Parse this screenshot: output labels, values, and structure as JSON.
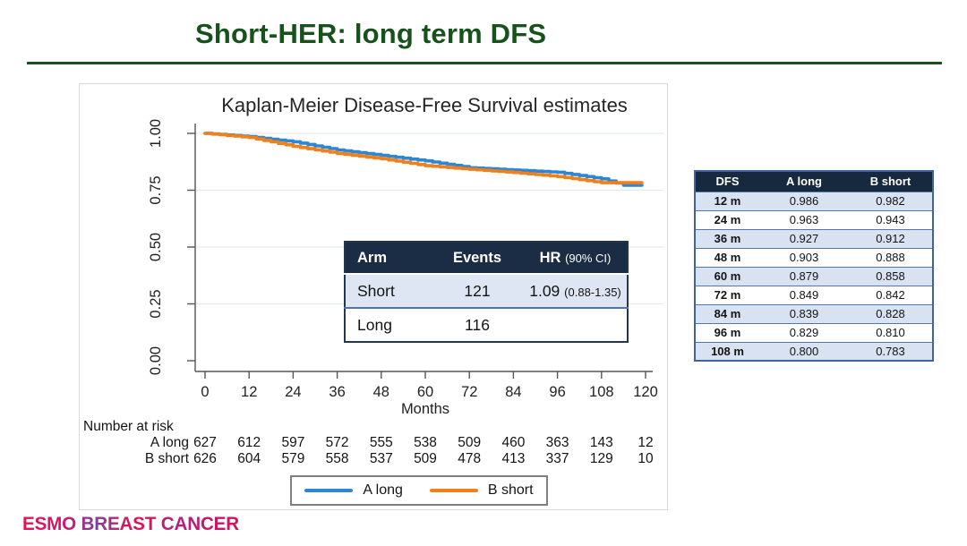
{
  "slide": {
    "title": "Short-HER: long term DFS"
  },
  "figure": {
    "title": "Kaplan-Meier Disease-Free Survival estimates"
  },
  "axes": {
    "x_label": "Months",
    "x_ticks": [
      "0",
      "12",
      "24",
      "36",
      "48",
      "60",
      "72",
      "84",
      "96",
      "108",
      "120"
    ],
    "y_ticks": [
      "1.00",
      "0.75",
      "0.50",
      "0.25",
      "0.00"
    ]
  },
  "inset_table": {
    "headers": {
      "arm": "Arm",
      "events": "Events",
      "hr": "HR",
      "hr_ci": "(90% CI)"
    },
    "rows": [
      {
        "arm": "Short",
        "events": "121",
        "hr": "1.09",
        "hr_ci": "(0.88-1.35)"
      },
      {
        "arm": "Long",
        "events": "116",
        "hr": "",
        "hr_ci": ""
      }
    ]
  },
  "risk": {
    "title": "Number at risk",
    "rows": [
      {
        "label": "A long",
        "values": [
          "627",
          "612",
          "597",
          "572",
          "555",
          "538",
          "509",
          "460",
          "363",
          "143",
          "12"
        ]
      },
      {
        "label": "B short",
        "values": [
          "626",
          "604",
          "579",
          "558",
          "537",
          "509",
          "478",
          "413",
          "337",
          "129",
          "10"
        ]
      }
    ]
  },
  "legend": {
    "items": [
      {
        "label": "A long",
        "color": "#2e86d4"
      },
      {
        "label": "B short",
        "color": "#f08019"
      }
    ]
  },
  "side_table": {
    "headers": [
      "DFS",
      "A long",
      "B short"
    ],
    "rows": [
      [
        "12 m",
        "0.986",
        "0.982"
      ],
      [
        "24 m",
        "0.963",
        "0.943"
      ],
      [
        "36 m",
        "0.927",
        "0.912"
      ],
      [
        "48 m",
        "0.903",
        "0.888"
      ],
      [
        "60 m",
        "0.879",
        "0.858"
      ],
      [
        "72 m",
        "0.849",
        "0.842"
      ],
      [
        "84 m",
        "0.839",
        "0.828"
      ],
      [
        "96 m",
        "0.829",
        "0.810"
      ],
      [
        "108 m",
        "0.800",
        "0.783"
      ]
    ]
  },
  "footer": {
    "logo": "ESMO BREAST CANCER"
  },
  "colors": {
    "title_green": "#17521d",
    "curve_a_long": "#2e86d4",
    "curve_b_short": "#f08019",
    "table_header_navy": "#1b2d44",
    "table_row_light": "#dde6f2",
    "gridline": "#e3e9ef",
    "axis": "#555555",
    "logo_magenta": "#d3145f"
  },
  "chart_data": {
    "type": "line",
    "step": true,
    "title": "Kaplan-Meier Disease-Free Survival estimates",
    "xlabel": "Months",
    "xlim": [
      0,
      120
    ],
    "ylim": [
      0.0,
      1.0
    ],
    "x_ticks": [
      0,
      12,
      24,
      36,
      48,
      60,
      72,
      84,
      96,
      108,
      120
    ],
    "y_ticks": [
      1.0,
      0.75,
      0.5,
      0.25,
      0.0
    ],
    "grid": true,
    "legend_position": "bottom",
    "series": [
      {
        "name": "A long",
        "color": "#2e86d4",
        "x": [
          0,
          12,
          24,
          36,
          48,
          60,
          72,
          84,
          96,
          108,
          114,
          119
        ],
        "values": [
          1.0,
          0.986,
          0.963,
          0.927,
          0.903,
          0.879,
          0.849,
          0.839,
          0.829,
          0.8,
          0.772,
          0.772
        ]
      },
      {
        "name": "B short",
        "color": "#f08019",
        "x": [
          0,
          12,
          24,
          36,
          48,
          60,
          72,
          84,
          96,
          108,
          119
        ],
        "values": [
          1.0,
          0.982,
          0.943,
          0.912,
          0.888,
          0.858,
          0.842,
          0.828,
          0.81,
          0.783,
          0.783
        ]
      }
    ],
    "number_at_risk": {
      "A long": [
        627,
        612,
        597,
        572,
        555,
        538,
        509,
        460,
        363,
        143,
        12
      ],
      "B short": [
        626,
        604,
        579,
        558,
        537,
        509,
        478,
        413,
        337,
        129,
        10
      ]
    },
    "hr_annotation": {
      "arm": "Short",
      "events_short": 121,
      "events_long": 116,
      "hr": 1.09,
      "ci_90": [
        0.88,
        1.35
      ]
    }
  }
}
